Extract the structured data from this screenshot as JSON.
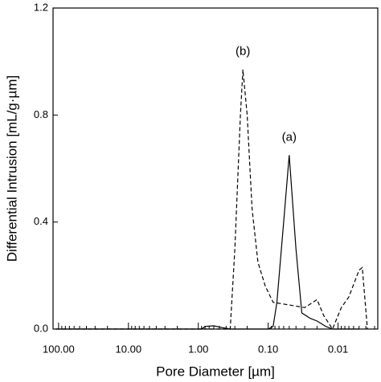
{
  "chart_data": {
    "type": "line",
    "x_label": "Pore Diameter [µm]",
    "y_label": "Differential Intrusion [mL/g·µm]",
    "xscale": "log",
    "xreversed": true,
    "xlim": [
      120,
      0.0027
    ],
    "ylim": [
      0,
      1.2
    ],
    "xticks": [
      {
        "value": 100,
        "label": "100.00"
      },
      {
        "value": 10,
        "label": "10.00"
      },
      {
        "value": 1,
        "label": "1.00"
      },
      {
        "value": 0.1,
        "label": "0.10"
      },
      {
        "value": 0.01,
        "label": "0.01"
      }
    ],
    "yticks": [
      {
        "value": 0,
        "label": "0.0"
      },
      {
        "value": 0.4,
        "label": "0.4"
      },
      {
        "value": 0.8,
        "label": "0.8"
      },
      {
        "value": 1.2,
        "label": "1.2"
      }
    ],
    "series": [
      {
        "name": "(a)",
        "color": "#000000",
        "line_style": "solid",
        "x": [
          110,
          0.9,
          0.8,
          0.6,
          0.45,
          0.35,
          0.1,
          0.085,
          0.075,
          0.06,
          0.05,
          0.04,
          0.033,
          0.025,
          0.02,
          0.015,
          0.012,
          0.005
        ],
        "values": [
          0,
          0,
          0.01,
          0.012,
          0.005,
          0,
          0,
          0.01,
          0.1,
          0.4,
          0.65,
          0.3,
          0.06,
          0.04,
          0.03,
          0.01,
          0,
          0
        ]
      },
      {
        "name": "(b)",
        "color": "#000000",
        "line_style": "dashed",
        "x": [
          110,
          0.35,
          0.3,
          0.25,
          0.23,
          0.2,
          0.17,
          0.14,
          0.11,
          0.085,
          0.05,
          0.03,
          0.02,
          0.016,
          0.012,
          0.009,
          0.007,
          0.005,
          0.0045,
          0.0038
        ],
        "values": [
          0,
          0,
          0.3,
          0.8,
          0.97,
          0.8,
          0.45,
          0.25,
          0.16,
          0.1,
          0.09,
          0.08,
          0.11,
          0.05,
          0,
          0.08,
          0.12,
          0.22,
          0.23,
          0
        ]
      }
    ]
  }
}
